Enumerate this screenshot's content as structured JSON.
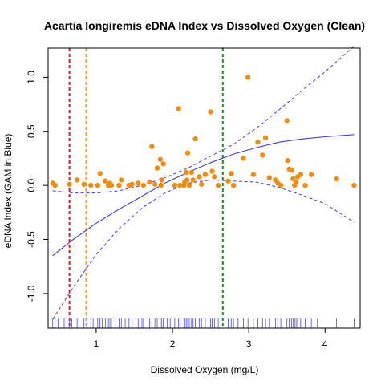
{
  "chart_data": {
    "type": "scatter",
    "title": "Acartia longiremis eDNA Index vs Dissolved Oxygen (Clean)",
    "xlabel": "Dissolved Oxygen (mg/L)",
    "ylabel": "eDNA Index (GAM in Blue)",
    "xlim": [
      0.37,
      4.46
    ],
    "ylim": [
      -1.32,
      1.27
    ],
    "x_ticks": [
      1,
      2,
      3,
      4
    ],
    "x_tick_labels": [
      "1",
      "2",
      "3",
      "4"
    ],
    "y_ticks": [
      -1.0,
      -0.5,
      0.0,
      0.5,
      1.0
    ],
    "y_tick_labels": [
      "-1.0",
      "-0.5",
      "0.0",
      "0.5",
      "1.0"
    ],
    "grid": false,
    "colors": {
      "points": "#f28c0f",
      "gam": "#3a3af0",
      "rug": "#4a4ae8",
      "vline_red": "#e8161c",
      "vline_orange": "#f29a1a",
      "vline_green": "#17941f"
    },
    "vlines": [
      {
        "x": 0.65,
        "color": "#e8161c"
      },
      {
        "x": 0.87,
        "color": "#f29a1a"
      },
      {
        "x": 2.66,
        "color": "#17941f"
      }
    ],
    "points": [
      [
        0.43,
        0.02
      ],
      [
        0.46,
        0.0
      ],
      [
        0.65,
        0.01
      ],
      [
        0.75,
        0.05
      ],
      [
        0.84,
        0.01
      ],
      [
        0.93,
        0.0
      ],
      [
        1.02,
        0.0
      ],
      [
        1.05,
        0.11
      ],
      [
        1.12,
        0.04
      ],
      [
        1.16,
        0.0
      ],
      [
        1.18,
        0.02
      ],
      [
        1.2,
        0.0
      ],
      [
        1.3,
        0.0
      ],
      [
        1.33,
        0.05
      ],
      [
        1.43,
        0.0
      ],
      [
        1.47,
        0.01
      ],
      [
        1.55,
        0.02
      ],
      [
        1.62,
        0.0
      ],
      [
        1.7,
        0.03
      ],
      [
        1.73,
        0.36
      ],
      [
        1.77,
        0.01
      ],
      [
        1.8,
        0.16
      ],
      [
        1.84,
        0.24
      ],
      [
        1.85,
        0.0
      ],
      [
        1.86,
        0.05
      ],
      [
        1.88,
        0.2
      ],
      [
        2.03,
        0.0
      ],
      [
        2.08,
        0.71
      ],
      [
        2.1,
        0.0
      ],
      [
        2.15,
        0.0
      ],
      [
        2.16,
        0.03
      ],
      [
        2.18,
        0.12
      ],
      [
        2.19,
        0.05
      ],
      [
        2.2,
        0.3
      ],
      [
        2.22,
        0.0
      ],
      [
        2.25,
        0.12
      ],
      [
        2.27,
        0.05
      ],
      [
        2.3,
        0.43
      ],
      [
        2.35,
        0.08
      ],
      [
        2.38,
        0.01
      ],
      [
        2.43,
        0.1
      ],
      [
        2.5,
        0.68
      ],
      [
        2.52,
        0.13
      ],
      [
        2.55,
        0.08
      ],
      [
        2.6,
        0.0
      ],
      [
        2.73,
        0.04
      ],
      [
        2.77,
        0.11
      ],
      [
        2.8,
        0.0
      ],
      [
        2.93,
        0.25
      ],
      [
        2.99,
        1.0
      ],
      [
        3.06,
        0.1
      ],
      [
        3.12,
        0.4
      ],
      [
        3.18,
        0.28
      ],
      [
        3.22,
        0.44
      ],
      [
        3.27,
        0.07
      ],
      [
        3.35,
        0.05
      ],
      [
        3.38,
        0.02
      ],
      [
        3.42,
        0.0
      ],
      [
        3.5,
        0.6
      ],
      [
        3.51,
        0.23
      ],
      [
        3.53,
        0.15
      ],
      [
        3.56,
        0.14
      ],
      [
        3.58,
        0.06
      ],
      [
        3.6,
        0.0
      ],
      [
        3.62,
        0.03
      ],
      [
        3.64,
        0.08
      ],
      [
        3.68,
        0.1
      ],
      [
        3.74,
        0.0
      ],
      [
        3.82,
        0.1
      ],
      [
        4.15,
        0.06
      ],
      [
        4.38,
        0.0
      ]
    ],
    "gam_fit": {
      "x": [
        0.43,
        0.7,
        1.0,
        1.3,
        1.6,
        1.9,
        2.2,
        2.5,
        2.8,
        3.1,
        3.4,
        3.7,
        4.0,
        4.38
      ],
      "y": [
        -0.65,
        -0.5,
        -0.35,
        -0.22,
        -0.1,
        0.02,
        0.12,
        0.21,
        0.29,
        0.35,
        0.4,
        0.43,
        0.45,
        0.47
      ]
    },
    "gam_upper": {
      "x": [
        0.43,
        0.7,
        1.0,
        1.3,
        1.6,
        1.9,
        2.2,
        2.5,
        2.8,
        3.1,
        3.4,
        3.7,
        4.0,
        4.38
      ],
      "y": [
        -0.05,
        -0.07,
        -0.07,
        -0.05,
        0.0,
        0.07,
        0.16,
        0.27,
        0.38,
        0.53,
        0.7,
        0.88,
        1.05,
        1.29
      ]
    },
    "gam_lower": {
      "x": [
        0.43,
        0.7,
        1.0,
        1.3,
        1.6,
        1.9,
        2.2,
        2.5,
        2.8,
        3.1,
        3.4,
        3.7,
        4.0,
        4.38
      ],
      "y": [
        -1.24,
        -0.94,
        -0.64,
        -0.4,
        -0.21,
        -0.07,
        0.02,
        0.05,
        0.04,
        0.03,
        -0.02,
        -0.09,
        -0.17,
        -0.34
      ]
    },
    "rug": [
      0.43,
      0.46,
      0.5,
      0.58,
      0.65,
      0.68,
      0.75,
      0.84,
      0.88,
      0.93,
      0.96,
      1.02,
      1.05,
      1.08,
      1.12,
      1.16,
      1.18,
      1.2,
      1.25,
      1.3,
      1.33,
      1.38,
      1.43,
      1.47,
      1.52,
      1.55,
      1.6,
      1.62,
      1.7,
      1.73,
      1.77,
      1.8,
      1.84,
      1.86,
      1.88,
      1.93,
      1.97,
      2.03,
      2.08,
      2.1,
      2.15,
      2.16,
      2.18,
      2.2,
      2.22,
      2.25,
      2.27,
      2.3,
      2.35,
      2.38,
      2.43,
      2.5,
      2.52,
      2.55,
      2.6,
      2.73,
      2.77,
      2.8,
      2.86,
      2.93,
      2.99,
      3.06,
      3.12,
      3.18,
      3.22,
      3.27,
      3.35,
      3.38,
      3.42,
      3.5,
      3.53,
      3.56,
      3.58,
      3.6,
      3.62,
      3.64,
      3.68,
      3.74,
      3.82,
      3.9,
      4.15,
      4.38
    ]
  }
}
